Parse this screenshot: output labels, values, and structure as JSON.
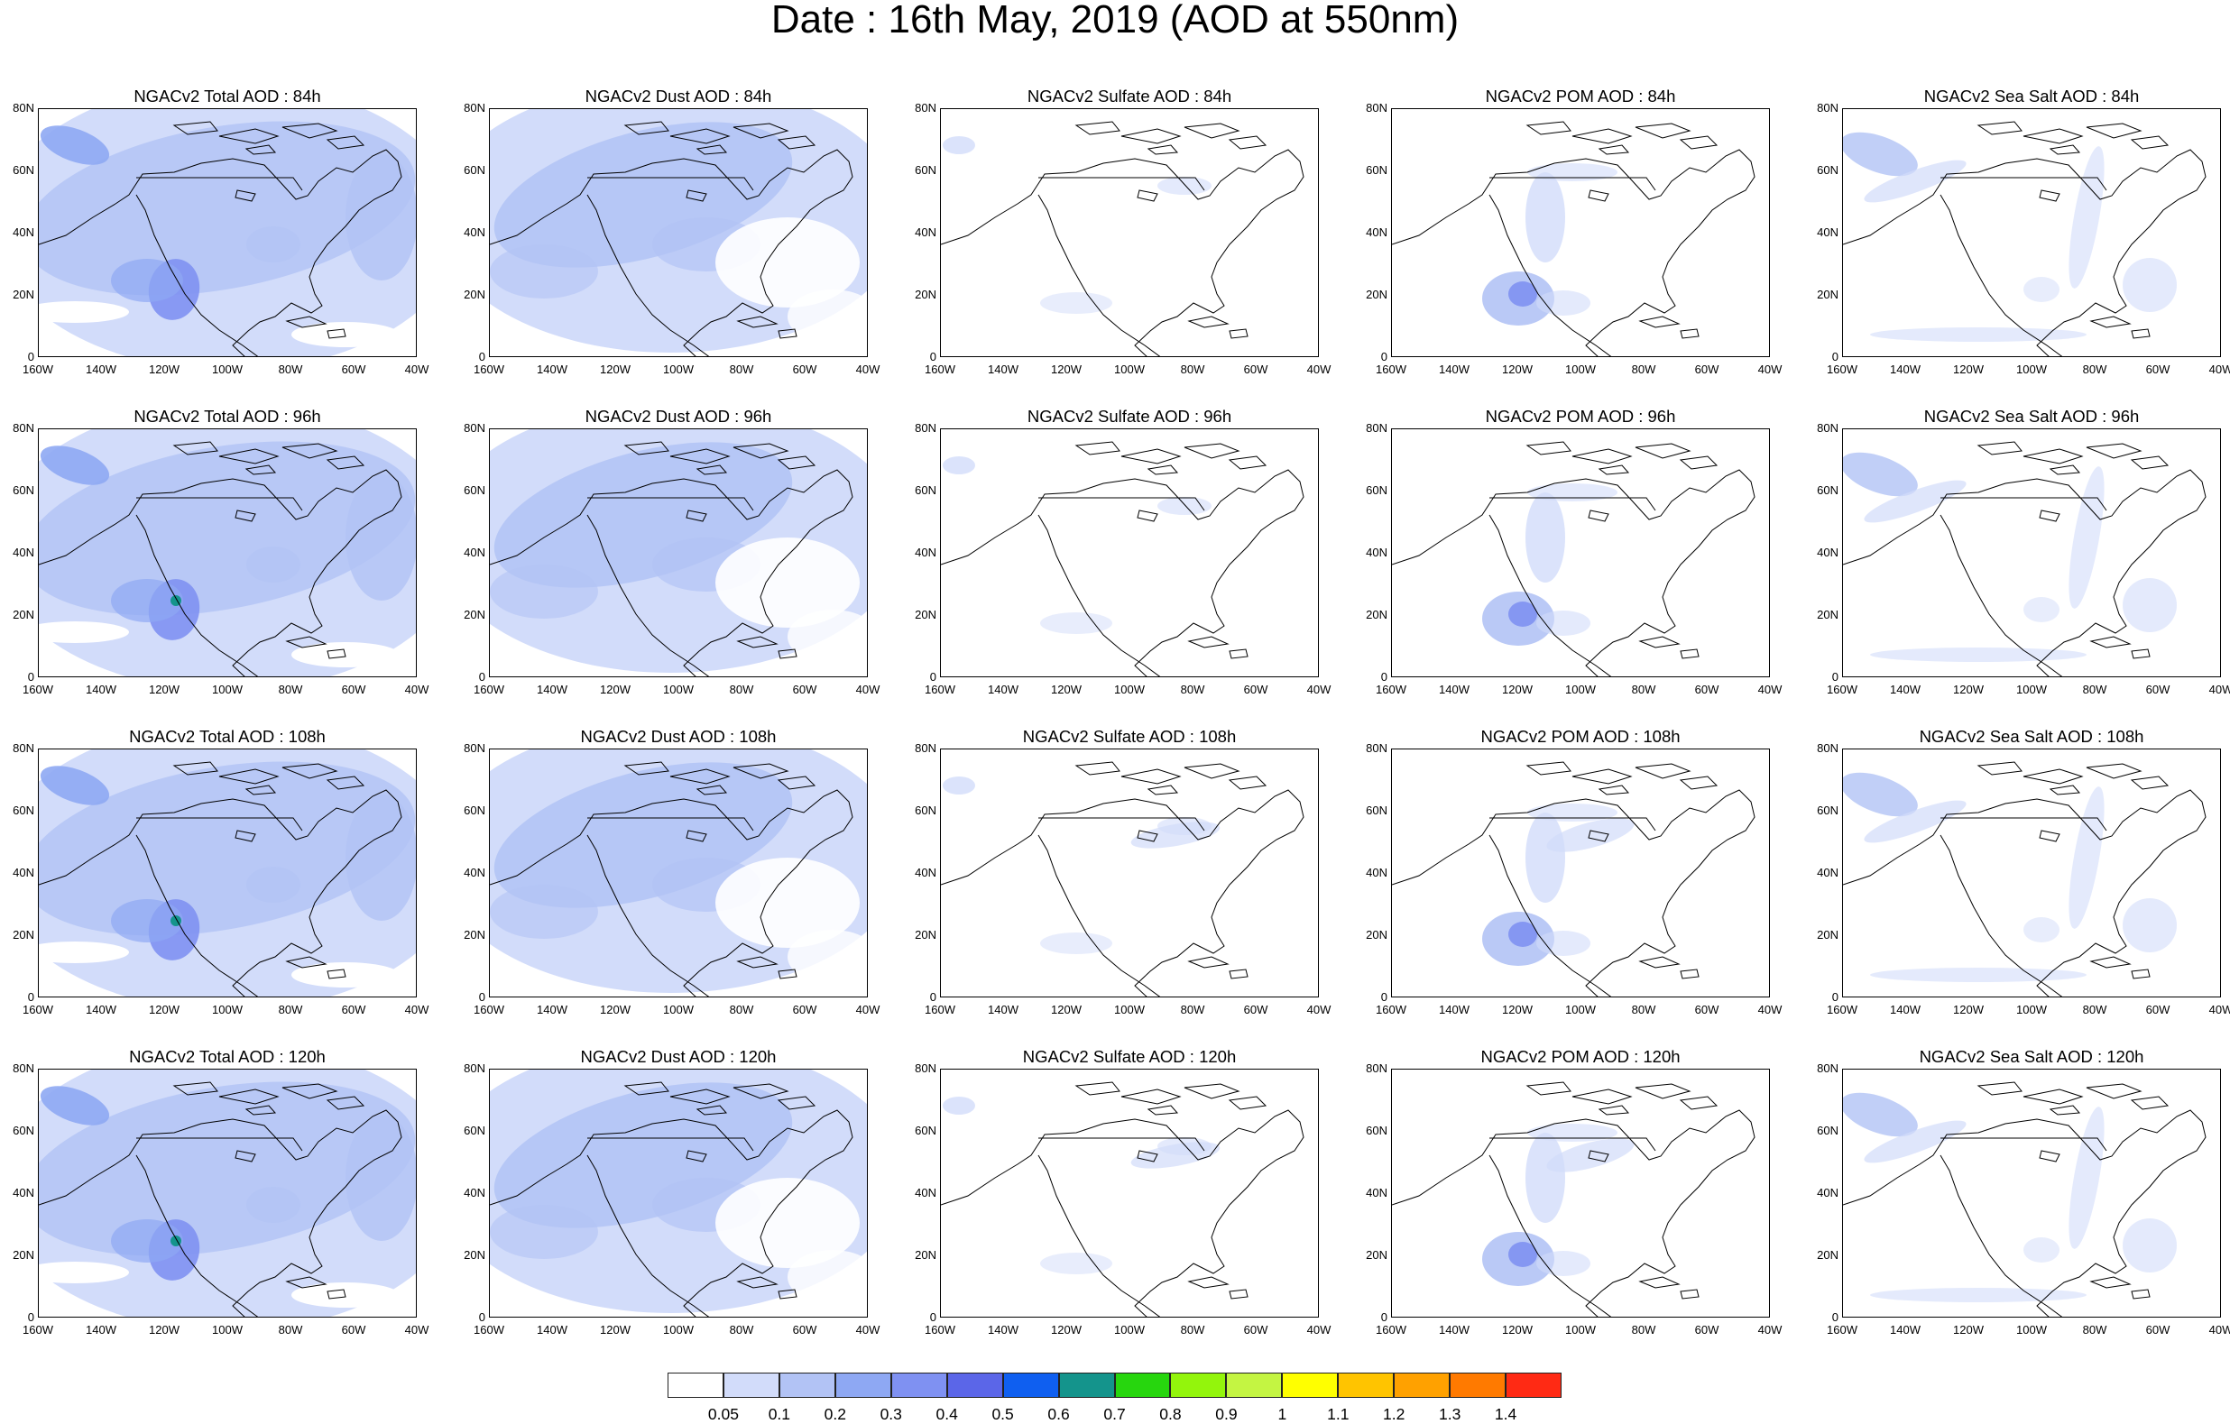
{
  "title": "Date : 16th May, 2019 (AOD at 550nm)",
  "axis": {
    "lat_labels": [
      "80N",
      "60N",
      "40N",
      "20N",
      "0"
    ],
    "lon_labels": [
      "160W",
      "140W",
      "120W",
      "100W",
      "80W",
      "60W",
      "40W"
    ]
  },
  "panels": [
    {
      "title": "NGACv2 Total AOD : 84h",
      "type": "total",
      "hour": 84
    },
    {
      "title": "NGACv2 Dust AOD : 84h",
      "type": "dust",
      "hour": 84
    },
    {
      "title": "NGACv2 Sulfate AOD : 84h",
      "type": "sulfate",
      "hour": 84
    },
    {
      "title": "NGACv2 POM AOD : 84h",
      "type": "pom",
      "hour": 84
    },
    {
      "title": "NGACv2 Sea Salt AOD : 84h",
      "type": "seasalt",
      "hour": 84
    },
    {
      "title": "NGACv2 Total AOD : 96h",
      "type": "total",
      "hour": 96
    },
    {
      "title": "NGACv2 Dust AOD : 96h",
      "type": "dust",
      "hour": 96
    },
    {
      "title": "NGACv2 Sulfate AOD : 96h",
      "type": "sulfate",
      "hour": 96
    },
    {
      "title": "NGACv2 POM AOD : 96h",
      "type": "pom",
      "hour": 96
    },
    {
      "title": "NGACv2 Sea Salt AOD : 96h",
      "type": "seasalt",
      "hour": 96
    },
    {
      "title": "NGACv2 Total AOD : 108h",
      "type": "total",
      "hour": 108
    },
    {
      "title": "NGACv2 Dust AOD : 108h",
      "type": "dust",
      "hour": 108
    },
    {
      "title": "NGACv2 Sulfate AOD : 108h",
      "type": "sulfate",
      "hour": 108
    },
    {
      "title": "NGACv2 POM AOD : 108h",
      "type": "pom",
      "hour": 108
    },
    {
      "title": "NGACv2 Sea Salt AOD : 108h",
      "type": "seasalt",
      "hour": 108
    },
    {
      "title": "NGACv2 Total AOD : 120h",
      "type": "total",
      "hour": 120
    },
    {
      "title": "NGACv2 Dust AOD : 120h",
      "type": "dust",
      "hour": 120
    },
    {
      "title": "NGACv2 Sulfate AOD : 120h",
      "type": "sulfate",
      "hour": 120
    },
    {
      "title": "NGACv2 POM AOD : 120h",
      "type": "pom",
      "hour": 120
    },
    {
      "title": "NGACv2 Sea Salt  AOD : 120h",
      "type": "seasalt",
      "hour": 120
    }
  ],
  "colorbar": {
    "colors": [
      "#ffffff",
      "#d2dcfa",
      "#b2c3f5",
      "#8ea8f3",
      "#7f91f2",
      "#5b66e8",
      "#0f5ff0",
      "#14948c",
      "#27d60e",
      "#93f50c",
      "#c4f542",
      "#ffff00",
      "#ffc400",
      "#ffa100",
      "#ff7a00",
      "#ff2a14"
    ],
    "labels": [
      "0.05",
      "0.1",
      "0.2",
      "0.3",
      "0.4",
      "0.5",
      "0.6",
      "0.7",
      "0.8",
      "0.9",
      "1",
      "1.1",
      "1.2",
      "1.3",
      "1.4"
    ]
  }
}
